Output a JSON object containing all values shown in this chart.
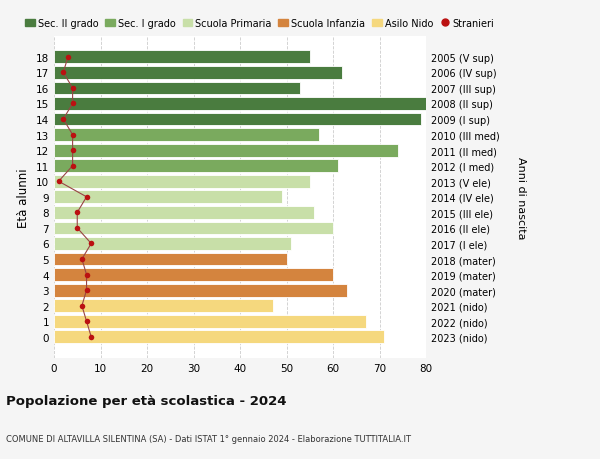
{
  "ages": [
    18,
    17,
    16,
    15,
    14,
    13,
    12,
    11,
    10,
    9,
    8,
    7,
    6,
    5,
    4,
    3,
    2,
    1,
    0
  ],
  "years": [
    "2005 (V sup)",
    "2006 (IV sup)",
    "2007 (III sup)",
    "2008 (II sup)",
    "2009 (I sup)",
    "2010 (III med)",
    "2011 (II med)",
    "2012 (I med)",
    "2013 (V ele)",
    "2014 (IV ele)",
    "2015 (III ele)",
    "2016 (II ele)",
    "2017 (I ele)",
    "2018 (mater)",
    "2019 (mater)",
    "2020 (mater)",
    "2021 (nido)",
    "2022 (nido)",
    "2023 (nido)"
  ],
  "bar_values": [
    55,
    62,
    53,
    80,
    79,
    57,
    74,
    61,
    55,
    49,
    56,
    60,
    51,
    50,
    60,
    63,
    47,
    67,
    71
  ],
  "bar_colors": [
    "#4a7c3f",
    "#4a7c3f",
    "#4a7c3f",
    "#4a7c3f",
    "#4a7c3f",
    "#7aaa5e",
    "#7aaa5e",
    "#7aaa5e",
    "#c8dfa8",
    "#c8dfa8",
    "#c8dfa8",
    "#c8dfa8",
    "#c8dfa8",
    "#d4843e",
    "#d4843e",
    "#d4843e",
    "#f5d87e",
    "#f5d87e",
    "#f5d87e"
  ],
  "stranieri_values": [
    3,
    2,
    4,
    4,
    2,
    4,
    4,
    4,
    1,
    7,
    5,
    5,
    8,
    6,
    7,
    7,
    6,
    7,
    8
  ],
  "title": "Popolazione per età scolastica - 2024",
  "subtitle": "COMUNE DI ALTAVILLA SILENTINA (SA) - Dati ISTAT 1° gennaio 2024 - Elaborazione TUTTITALIA.IT",
  "ylabel_text": "Età alunni",
  "right_ylabel": "Anni di nascita",
  "xlim": [
    0,
    80
  ],
  "xticks": [
    0,
    10,
    20,
    30,
    40,
    50,
    60,
    70,
    80
  ],
  "legend_labels": [
    "Sec. II grado",
    "Sec. I grado",
    "Scuola Primaria",
    "Scuola Infanzia",
    "Asilo Nido",
    "Stranieri"
  ],
  "legend_colors": [
    "#4a7c3f",
    "#7aaa5e",
    "#c8dfa8",
    "#d4843e",
    "#f5d87e",
    "#cc2222"
  ],
  "bg_color": "#f5f5f5",
  "bar_bg_color": "#ffffff",
  "stranieri_color": "#bb1111",
  "stranieri_line_color": "#994444",
  "figwidth": 6.0,
  "figheight": 4.6,
  "dpi": 100
}
